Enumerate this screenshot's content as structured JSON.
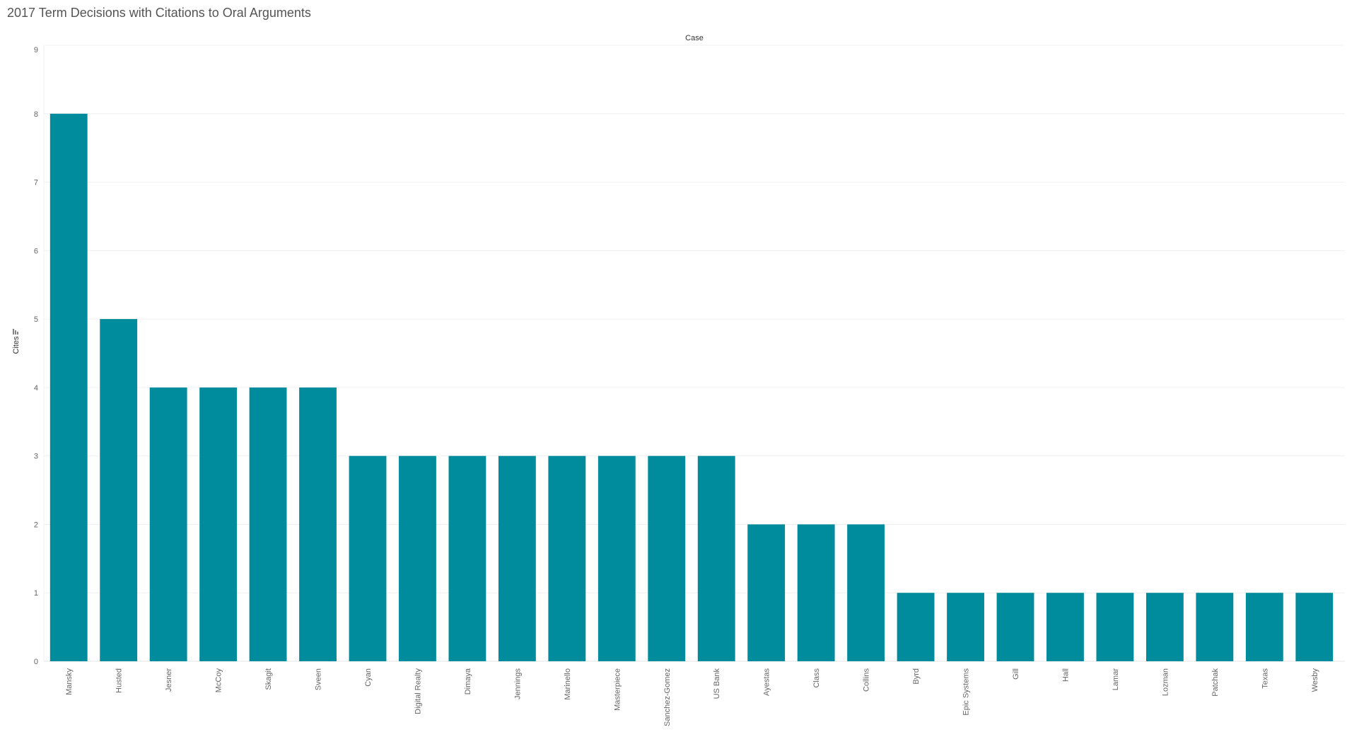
{
  "title": "2017 Term Decisions with Citations to Oral Arguments",
  "chart_data": {
    "type": "bar",
    "title": "2017 Term Decisions with Citations to Oral Arguments",
    "xlabel": "Case",
    "ylabel": "Cites",
    "ylim": [
      0,
      9
    ],
    "yticks": [
      0,
      1,
      2,
      3,
      4,
      5,
      6,
      7,
      8,
      9
    ],
    "grid": true,
    "bar_color": "#008C9C",
    "categories": [
      "Mansky",
      "Husted",
      "Jesner",
      "McCoy",
      "Skagit",
      "Sveen",
      "Cyan",
      "Digital Realty",
      "Dimaya",
      "Jennings",
      "Marinello",
      "Masterpiece",
      "Sanchez-Gomez",
      "US Bank",
      "Ayestas",
      "Class",
      "Collins",
      "Byrd",
      "Epic Systems",
      "Gill",
      "Hall",
      "Lamar",
      "Lozman",
      "Patchak",
      "Texas",
      "Wesby"
    ],
    "values": [
      8,
      5,
      4,
      4,
      4,
      4,
      3,
      3,
      3,
      3,
      3,
      3,
      3,
      3,
      2,
      2,
      2,
      1,
      1,
      1,
      1,
      1,
      1,
      1,
      1,
      1
    ]
  }
}
